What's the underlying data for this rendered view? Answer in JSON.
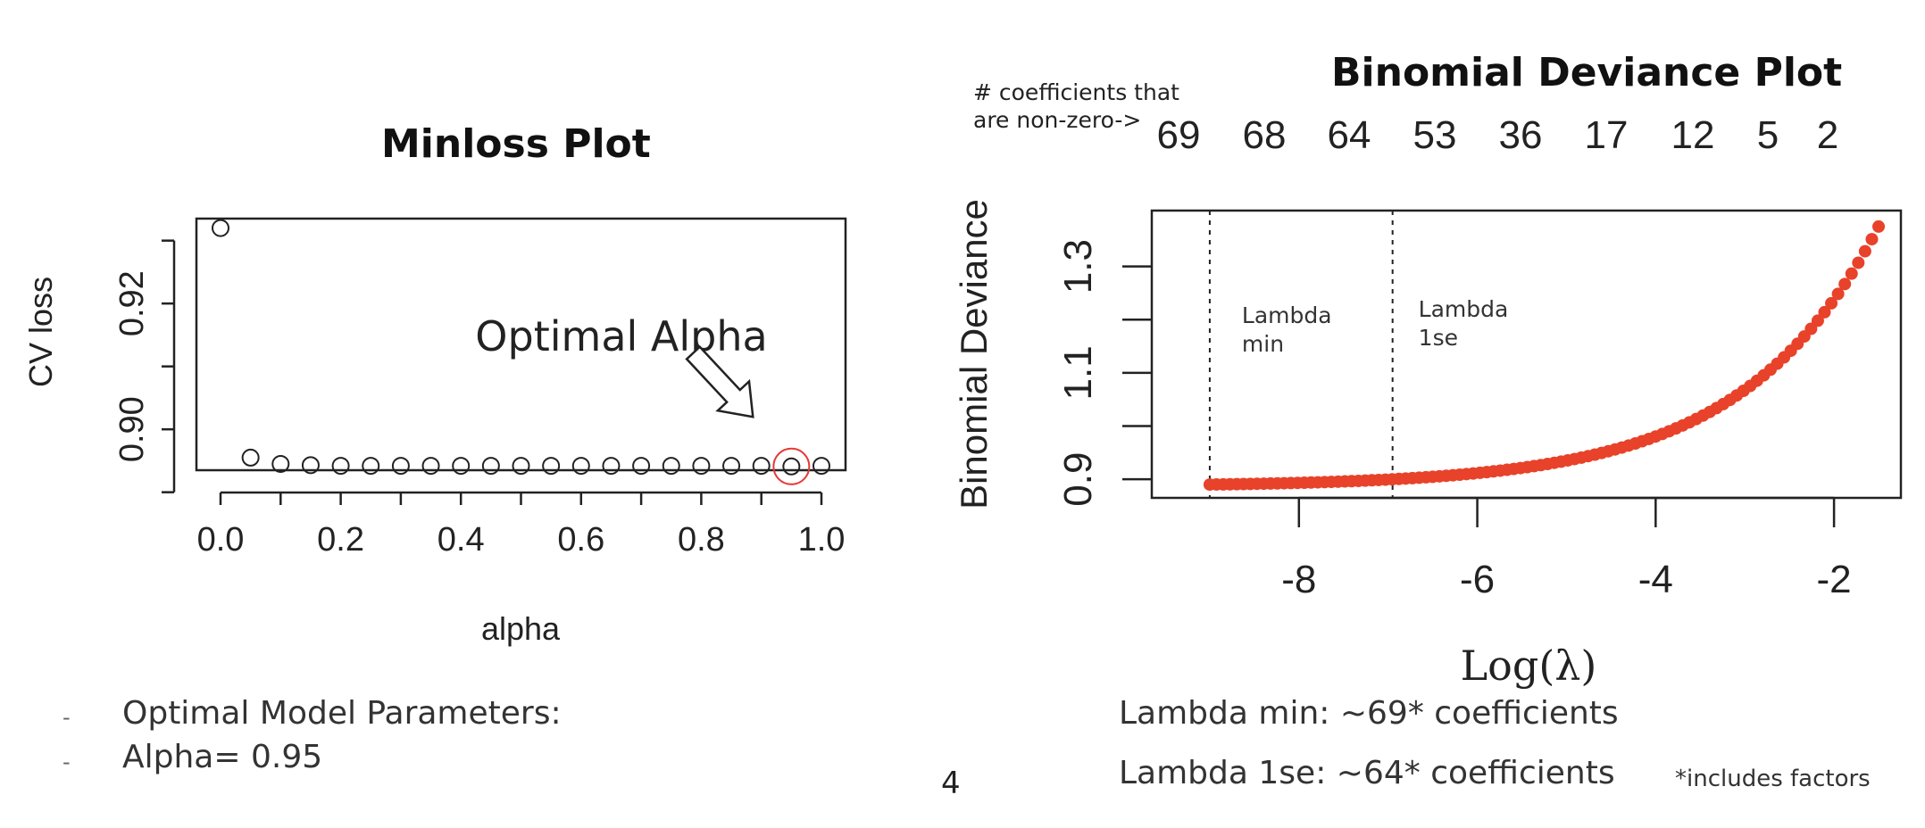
{
  "chart_data": [
    {
      "type": "scatter",
      "title": "Minloss Plot",
      "xlabel": "alpha",
      "ylabel": "CV loss",
      "xlim": [
        0.0,
        1.0
      ],
      "ylim": [
        0.8935,
        0.9335
      ],
      "x_ticks": [
        "0.0",
        "0.2",
        "0.4",
        "0.6",
        "0.8",
        "1.0"
      ],
      "y_ticks": [
        "0.90",
        "0.92"
      ],
      "x": [
        0.0,
        0.05,
        0.1,
        0.15,
        0.2,
        0.25,
        0.3,
        0.35,
        0.4,
        0.45,
        0.5,
        0.55,
        0.6,
        0.65,
        0.7,
        0.75,
        0.8,
        0.85,
        0.9,
        0.95,
        1.0
      ],
      "y": [
        0.932,
        0.8955,
        0.8945,
        0.8943,
        0.8942,
        0.8942,
        0.8942,
        0.8942,
        0.8942,
        0.8942,
        0.8942,
        0.8942,
        0.8942,
        0.8942,
        0.8942,
        0.8942,
        0.8942,
        0.8942,
        0.8942,
        0.8941,
        0.8942
      ],
      "highlight_x": 0.95,
      "annotation": "Optimal Alpha",
      "marker": "open-circle",
      "highlight_color": "#e53935"
    },
    {
      "type": "line",
      "title": "Binomial Deviance Plot",
      "xlabel": "Log(λ)",
      "ylabel": "Binomial Deviance",
      "xlim": [
        -9.65,
        -1.25
      ],
      "ylim": [
        0.865,
        1.405
      ],
      "x_ticks": [
        "-8",
        "-6",
        "-4",
        "-2"
      ],
      "y_ticks": [
        "0.9",
        "1.1",
        "1.3"
      ],
      "top_axis_note": "# coefficients that\nare non-zero->",
      "top_counts": [
        "69",
        "68",
        "64",
        "53",
        "36",
        "17",
        "12",
        "5",
        "2"
      ],
      "vlines": [
        {
          "x": -9.0,
          "label": [
            "Lambda",
            "min"
          ]
        },
        {
          "x": -6.95,
          "label": [
            "Lambda",
            "1se"
          ]
        }
      ],
      "curve": {
        "x_start": -9.0,
        "x_end": -1.5,
        "y_base": 0.89,
        "y_end": 1.375,
        "points": 100
      },
      "point_color": "#e8422a"
    }
  ],
  "bullets": [
    {
      "dash": "-",
      "text": "Optimal Model Parameters:"
    },
    {
      "dash": "-",
      "text": "Alpha= 0.95"
    }
  ],
  "notes": {
    "lambda_min": "Lambda min: ~69* coefficients",
    "lambda_1se": "Lambda 1se:  ~64* coefficients",
    "footnote": "*includes factors"
  },
  "page_number": "4"
}
